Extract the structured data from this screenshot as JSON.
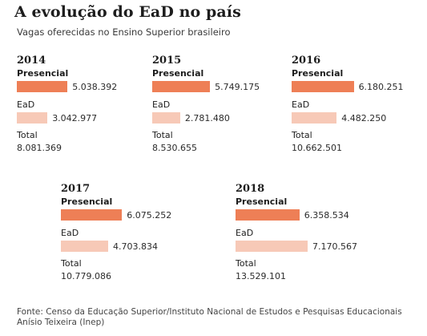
{
  "title": "A evolução do EaD no país",
  "subtitle": "Vagas oferecidas no Ensino Superior brasileiro",
  "series_labels": {
    "presencial": "Presencial",
    "ead": "EaD"
  },
  "total_label": "Total",
  "source": "Fonte: Censo da Educação Superior/Instituto Nacional de Estudos e Pesquisas Educacionais Anísio Teixeira (Inep)",
  "colors": {
    "presencial": "#ee7f56",
    "ead": "#f7c9b7"
  },
  "chart_data": {
    "type": "bar",
    "title": "A evolução do EaD no país",
    "subtitle": "Vagas oferecidas no Ensino Superior brasileiro",
    "categories": [
      "2014",
      "2015",
      "2016",
      "2017",
      "2018"
    ],
    "series": [
      {
        "name": "Presencial",
        "values": [
          5038392,
          5749175,
          6180251,
          6075252,
          6358534
        ],
        "labels": [
          "5.038.392",
          "5.749.175",
          "6.180.251",
          "6.075.252",
          "6.358.534"
        ]
      },
      {
        "name": "EaD",
        "values": [
          3042977,
          2781480,
          4482250,
          4703834,
          7170567
        ],
        "labels": [
          "3.042.977",
          "2.781.480",
          "4.482.250",
          "4.703.834",
          "7.170.567"
        ]
      }
    ],
    "totals": [
      8081369,
      8530655,
      10662501,
      10779086,
      13529101
    ],
    "total_labels": [
      "8.081.369",
      "8.530.655",
      "10.662.501",
      "10.779.086",
      "13.529.101"
    ]
  }
}
